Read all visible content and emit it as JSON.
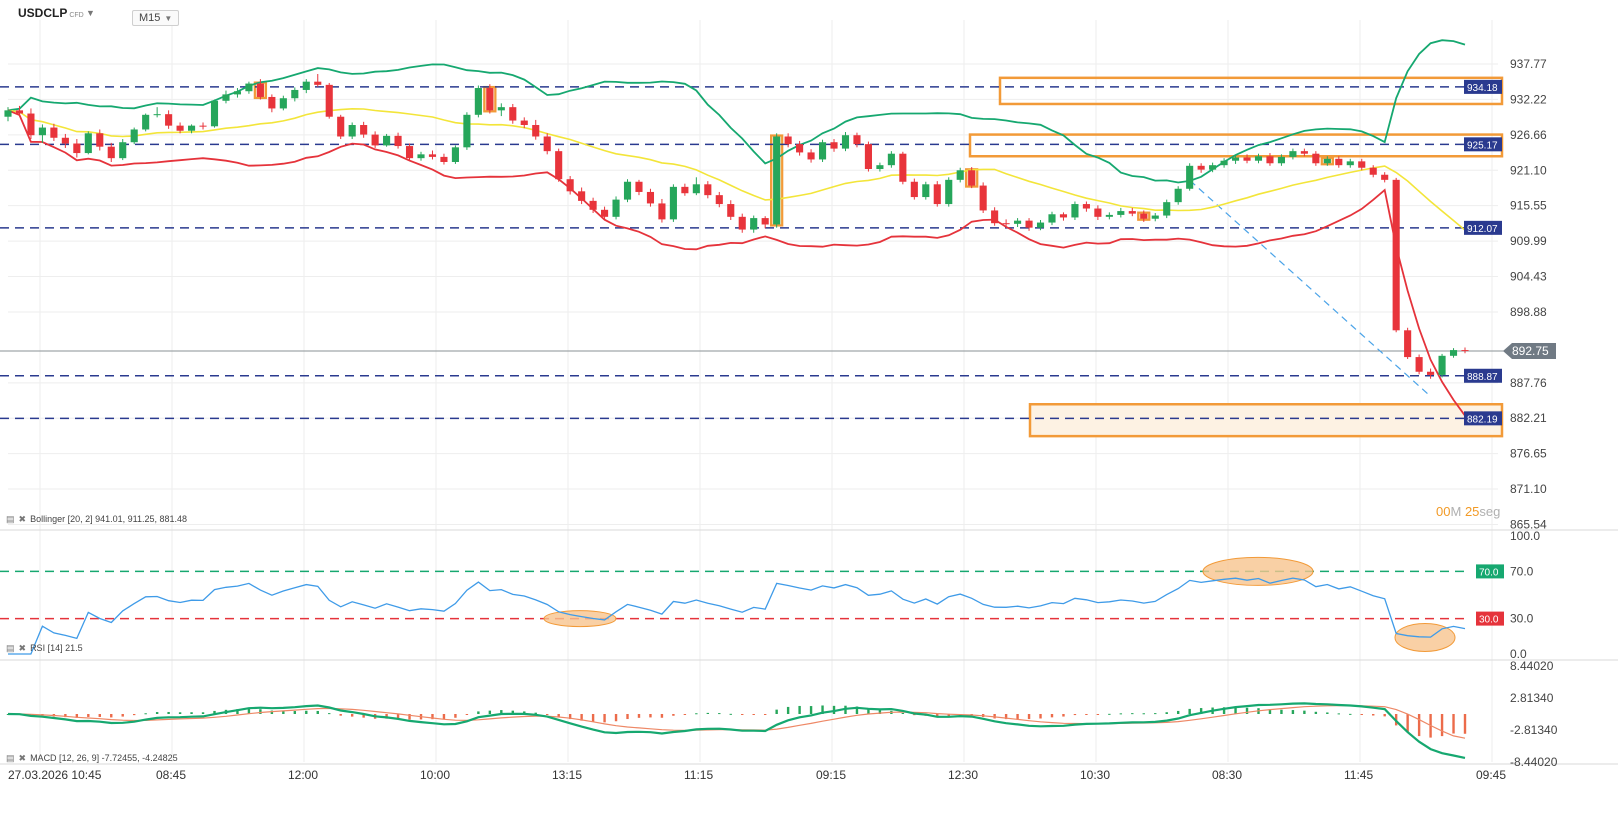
{
  "header": {
    "symbol": "USDCLP",
    "instrument_type": "CFD",
    "timeframe": "M15"
  },
  "countdown": {
    "minutes": "00",
    "minutes_unit": "M",
    "seconds": "25",
    "seconds_unit": "seg"
  },
  "colors": {
    "up": "#26a65b",
    "down": "#e8343b",
    "bb_upper": "#16a870",
    "bb_middle": "#f3e53a",
    "bb_lower": "#e5333b",
    "level_line": "#2a3a8f",
    "zone_border": "#f29a38",
    "zone_fill": "#fdf2e3",
    "rsi_line": "#3f9be8",
    "rsi_70": "#16a870",
    "rsi_30": "#e5333b",
    "macd_line": "#16a870",
    "signal_line": "#ee8866",
    "price_tag": "#707a84"
  },
  "chart_data": [
    {
      "type": "candlestick",
      "title": "",
      "y_ticks": [
        "937.77",
        "932.22",
        "926.66",
        "921.10",
        "915.55",
        "909.99",
        "904.43",
        "898.88",
        "887.76",
        "882.21",
        "876.65",
        "871.10",
        "865.54"
      ],
      "x_ticks": [
        "27.03.2026 10:45",
        "08:45",
        "12:00",
        "10:00",
        "13:15",
        "11:15",
        "09:15",
        "12:30",
        "10:30",
        "08:30",
        "11:45",
        "09:45"
      ],
      "ylim": [
        865.54,
        943.0
      ],
      "current_price": "892.75",
      "horizontal_levels": [
        "934.18",
        "925.17",
        "912.07",
        "888.87",
        "882.19"
      ],
      "zones": [
        {
          "from_x": "12:30",
          "top": 935.6,
          "bottom": 931.5
        },
        {
          "from_x": "12:30",
          "top": 926.7,
          "bottom": 923.3
        },
        {
          "from_x": "10:30",
          "top": 884.4,
          "bottom": 879.4
        }
      ],
      "ohlc": [
        [
          929.5,
          931.0,
          928.8,
          930.5
        ],
        [
          930.5,
          931.2,
          929.6,
          930.0
        ],
        [
          930.0,
          930.8,
          926.0,
          926.6
        ],
        [
          926.6,
          928.3,
          925.4,
          927.8
        ],
        [
          927.8,
          928.4,
          925.7,
          926.2
        ],
        [
          926.2,
          926.8,
          924.6,
          925.3
        ],
        [
          925.3,
          926.0,
          923.1,
          923.8
        ],
        [
          923.8,
          927.2,
          923.6,
          926.9
        ],
        [
          926.9,
          927.5,
          924.2,
          924.8
        ],
        [
          924.8,
          925.4,
          922.4,
          923.0
        ],
        [
          923.0,
          926.0,
          922.7,
          925.5
        ],
        [
          925.5,
          927.8,
          925.2,
          927.5
        ],
        [
          927.5,
          930.0,
          927.2,
          929.8
        ],
        [
          929.8,
          931.0,
          929.4,
          929.9
        ],
        [
          929.9,
          930.5,
          927.6,
          928.1
        ],
        [
          928.1,
          928.6,
          926.9,
          927.3
        ],
        [
          927.3,
          928.3,
          926.9,
          928.1
        ],
        [
          928.1,
          928.6,
          927.5,
          928.0
        ],
        [
          928.0,
          932.2,
          927.8,
          932.0
        ],
        [
          932.0,
          933.6,
          931.6,
          933.0
        ],
        [
          933.0,
          934.0,
          932.5,
          933.5
        ],
        [
          933.5,
          935.0,
          933.1,
          934.7
        ],
        [
          934.7,
          935.4,
          932.2,
          932.6
        ],
        [
          932.6,
          933.0,
          930.2,
          930.8
        ],
        [
          930.8,
          932.8,
          930.5,
          932.4
        ],
        [
          932.4,
          934.1,
          931.9,
          933.7
        ],
        [
          933.7,
          935.4,
          933.2,
          935.0
        ],
        [
          935.0,
          936.2,
          934.2,
          934.5
        ],
        [
          934.5,
          934.8,
          929.2,
          929.5
        ],
        [
          929.5,
          929.8,
          926.0,
          926.4
        ],
        [
          926.4,
          928.6,
          926.0,
          928.2
        ],
        [
          928.2,
          928.7,
          926.2,
          926.7
        ],
        [
          926.7,
          927.2,
          924.6,
          925.0
        ],
        [
          925.0,
          926.8,
          924.8,
          926.5
        ],
        [
          926.5,
          927.0,
          924.5,
          924.9
        ],
        [
          924.9,
          925.3,
          922.6,
          923.0
        ],
        [
          923.0,
          924.0,
          922.6,
          923.6
        ],
        [
          923.6,
          924.2,
          922.8,
          923.2
        ],
        [
          923.2,
          923.7,
          922.0,
          922.4
        ],
        [
          922.4,
          925.0,
          922.1,
          924.7
        ],
        [
          924.7,
          930.2,
          924.3,
          929.8
        ],
        [
          929.8,
          934.4,
          929.4,
          934.0
        ],
        [
          934.0,
          934.6,
          930.0,
          930.5
        ],
        [
          930.5,
          931.6,
          929.6,
          931.0
        ],
        [
          931.0,
          931.5,
          928.4,
          928.9
        ],
        [
          928.9,
          929.4,
          927.7,
          928.2
        ],
        [
          928.2,
          929.0,
          925.9,
          926.4
        ],
        [
          926.4,
          926.9,
          923.6,
          924.1
        ],
        [
          924.1,
          924.5,
          919.3,
          919.7
        ],
        [
          919.7,
          920.2,
          917.3,
          917.8
        ],
        [
          917.8,
          918.4,
          915.8,
          916.3
        ],
        [
          916.3,
          916.8,
          914.4,
          914.9
        ],
        [
          914.9,
          915.4,
          913.3,
          913.8
        ],
        [
          913.8,
          917.0,
          913.4,
          916.5
        ],
        [
          916.5,
          919.7,
          916.1,
          919.3
        ],
        [
          919.3,
          919.6,
          917.2,
          917.7
        ],
        [
          917.7,
          918.2,
          915.4,
          915.9
        ],
        [
          915.9,
          916.6,
          912.9,
          913.4
        ],
        [
          913.4,
          918.9,
          913.0,
          918.5
        ],
        [
          918.5,
          919.0,
          917.1,
          917.5
        ],
        [
          917.5,
          920.0,
          917.2,
          918.9
        ],
        [
          918.9,
          919.4,
          916.7,
          917.2
        ],
        [
          917.2,
          917.7,
          915.3,
          915.8
        ],
        [
          915.8,
          916.4,
          913.3,
          913.8
        ],
        [
          913.8,
          914.3,
          911.3,
          911.8
        ],
        [
          911.8,
          914.0,
          911.3,
          913.6
        ],
        [
          913.6,
          913.9,
          912.0,
          912.6
        ],
        [
          912.6,
          926.9,
          912.1,
          926.4
        ],
        [
          926.4,
          926.9,
          924.7,
          925.2
        ],
        [
          925.2,
          925.7,
          923.4,
          923.9
        ],
        [
          923.9,
          924.4,
          922.3,
          922.8
        ],
        [
          922.8,
          925.9,
          922.4,
          925.5
        ],
        [
          925.5,
          926.0,
          924.0,
          924.5
        ],
        [
          924.5,
          927.1,
          924.1,
          926.6
        ],
        [
          926.6,
          927.0,
          924.7,
          925.2
        ],
        [
          925.2,
          925.6,
          920.9,
          921.3
        ],
        [
          921.3,
          922.3,
          920.9,
          921.9
        ],
        [
          921.9,
          924.1,
          921.5,
          923.7
        ],
        [
          923.7,
          924.0,
          918.9,
          919.3
        ],
        [
          919.3,
          919.8,
          916.5,
          916.9
        ],
        [
          916.9,
          919.3,
          916.5,
          918.9
        ],
        [
          918.9,
          919.4,
          915.4,
          915.8
        ],
        [
          915.8,
          920.0,
          915.4,
          919.6
        ],
        [
          919.6,
          921.5,
          919.2,
          921.1
        ],
        [
          921.1,
          921.6,
          918.3,
          918.7
        ],
        [
          918.7,
          919.2,
          914.4,
          914.8
        ],
        [
          914.8,
          915.3,
          912.4,
          912.8
        ],
        [
          912.8,
          913.4,
          912.2,
          912.7
        ],
        [
          912.7,
          913.6,
          912.2,
          913.2
        ],
        [
          913.2,
          913.6,
          911.6,
          912.1
        ],
        [
          912.1,
          913.3,
          911.7,
          912.9
        ],
        [
          912.9,
          914.6,
          912.5,
          914.2
        ],
        [
          914.2,
          914.5,
          913.2,
          913.7
        ],
        [
          913.7,
          916.2,
          913.3,
          915.8
        ],
        [
          915.8,
          916.2,
          914.6,
          915.1
        ],
        [
          915.1,
          915.6,
          913.3,
          913.8
        ],
        [
          913.8,
          914.5,
          913.4,
          914.1
        ],
        [
          914.1,
          915.2,
          913.7,
          914.7
        ],
        [
          914.7,
          915.2,
          913.9,
          914.3
        ],
        [
          914.3,
          914.8,
          913.0,
          913.5
        ],
        [
          913.5,
          914.4,
          913.1,
          914.0
        ],
        [
          914.0,
          916.5,
          913.6,
          916.1
        ],
        [
          916.1,
          918.6,
          915.7,
          918.2
        ],
        [
          918.2,
          922.2,
          917.9,
          921.8
        ],
        [
          921.8,
          922.2,
          920.7,
          921.2
        ],
        [
          921.2,
          922.3,
          920.8,
          921.9
        ],
        [
          921.9,
          923.0,
          921.5,
          922.6
        ],
        [
          922.6,
          923.5,
          922.1,
          923.1
        ],
        [
          923.1,
          923.6,
          922.2,
          922.6
        ],
        [
          922.6,
          923.7,
          922.2,
          923.3
        ],
        [
          923.3,
          923.8,
          921.8,
          922.2
        ],
        [
          922.2,
          923.6,
          921.8,
          923.2
        ],
        [
          923.2,
          924.5,
          922.8,
          924.1
        ],
        [
          924.1,
          924.5,
          923.3,
          923.7
        ],
        [
          923.7,
          924.1,
          921.8,
          922.2
        ],
        [
          922.2,
          923.3,
          921.8,
          922.9
        ],
        [
          922.9,
          923.3,
          921.5,
          921.9
        ],
        [
          921.9,
          922.9,
          921.5,
          922.5
        ],
        [
          922.5,
          922.9,
          921.1,
          921.5
        ],
        [
          921.5,
          921.9,
          920.0,
          920.4
        ],
        [
          920.4,
          920.8,
          919.2,
          919.6
        ],
        [
          919.6,
          919.9,
          895.7,
          896.0
        ],
        [
          896.0,
          896.4,
          891.5,
          891.8
        ],
        [
          891.8,
          892.2,
          889.1,
          889.5
        ],
        [
          889.5,
          890.0,
          888.4,
          889.0
        ],
        [
          889.0,
          892.3,
          888.6,
          892.0
        ],
        [
          892.0,
          893.2,
          891.7,
          892.9
        ],
        [
          892.9,
          893.3,
          892.4,
          892.75
        ]
      ],
      "bollinger": {
        "label": "Bollinger [20, 2] 941.01, 911.25, 881.48",
        "period": 20,
        "mult": 2,
        "upper": 941.01,
        "middle": 911.25,
        "lower": 881.48
      }
    },
    {
      "type": "line",
      "title": "",
      "name": "RSI [14] 21.5",
      "ylim": [
        0,
        100
      ],
      "y_ticks": [
        "100.0",
        "70.0",
        "30.0",
        "0.0"
      ],
      "levels": [
        "70.0",
        "30.0"
      ],
      "last_value": 21.5
    },
    {
      "type": "bar",
      "title": "",
      "name": "MACD [12, 26, 9] -7.72455, -4.24825",
      "y_ticks": [
        "8.44020",
        "2.81340",
        "-2.81340",
        "-8.44020"
      ],
      "ylim": [
        -8.4402,
        8.4402
      ],
      "fast": 12,
      "slow": 26,
      "signal": 9,
      "last_macd": -7.72455,
      "last_signal": -4.24825
    }
  ]
}
